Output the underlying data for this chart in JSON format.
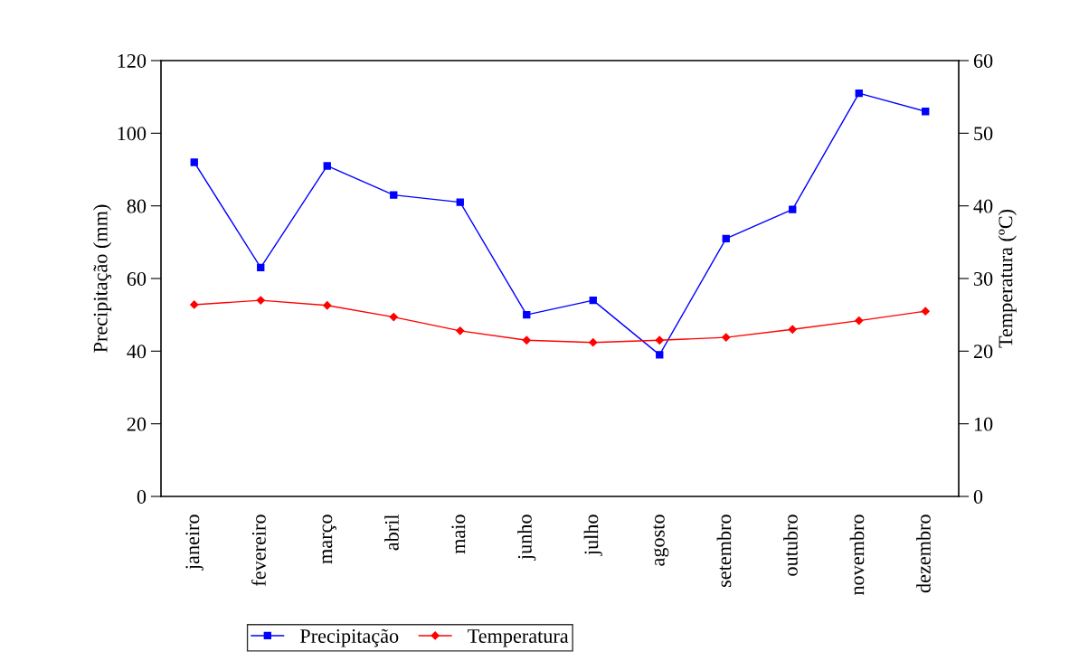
{
  "chart_data": {
    "type": "line",
    "ylabel": "Precipitação (mm)",
    "y2label": "Temperatura (ºC)",
    "categories": [
      "janeiro",
      "fevereiro",
      "março",
      "abril",
      "maio",
      "junho",
      "julho",
      "agosto",
      "setembro",
      "outubro",
      "novembro",
      "dezembro"
    ],
    "series": [
      {
        "name": "Precipitação",
        "color": "#0000ff",
        "marker": "square",
        "values": [
          92,
          63,
          91,
          83,
          81,
          50,
          54,
          39,
          71,
          79,
          111,
          106
        ]
      },
      {
        "name": "Temperatura",
        "color": "#ff0000",
        "marker": "diamond",
        "axis": "y2",
        "values": [
          26.4,
          27.0,
          26.3,
          24.7,
          22.8,
          21.5,
          21.2,
          21.5,
          21.9,
          23.0,
          24.2,
          25.5
        ]
      }
    ],
    "ylim": [
      0,
      120
    ],
    "yticks": [
      0,
      20,
      40,
      60,
      80,
      100,
      120
    ],
    "y2lim": [
      0,
      60
    ],
    "y2ticks": [
      0,
      10,
      20,
      30,
      40,
      50,
      60
    ],
    "grid": false,
    "legend": "bottom",
    "line_style": "solid"
  }
}
